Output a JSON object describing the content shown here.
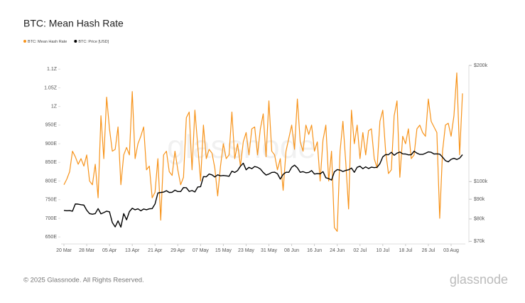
{
  "chart_data": {
    "type": "line",
    "title": "BTC: Mean Hash Rate",
    "watermark": "glassnode",
    "footer": "© 2025 Glassnode. All Rights Reserved.",
    "logo": "glassnode",
    "categories": [
      "20 Mar",
      null,
      null,
      null,
      null,
      null,
      null,
      null,
      "28 Mar",
      null,
      null,
      null,
      null,
      null,
      null,
      null,
      "05 Apr",
      null,
      null,
      null,
      null,
      null,
      null,
      null,
      "13 Apr",
      null,
      null,
      null,
      null,
      null,
      null,
      null,
      "21 Apr",
      null,
      null,
      null,
      null,
      null,
      null,
      null,
      "29 Apr",
      null,
      null,
      null,
      null,
      null,
      null,
      null,
      "07 May",
      null,
      null,
      null,
      null,
      null,
      null,
      null,
      "15 May",
      null,
      null,
      null,
      null,
      null,
      null,
      null,
      "23 May",
      null,
      null,
      null,
      null,
      null,
      null,
      null,
      "31 May",
      null,
      null,
      null,
      null,
      null,
      null,
      null,
      "08 Jun",
      null,
      null,
      null,
      null,
      null,
      null,
      null,
      "16 Jun",
      null,
      null,
      null,
      null,
      null,
      null,
      null,
      "24 Jun",
      null,
      null,
      null,
      null,
      null,
      null,
      null,
      "02 Jul",
      null,
      null,
      null,
      null,
      null,
      null,
      null,
      "10 Jul",
      null,
      null,
      null,
      null,
      null,
      null,
      null,
      "18 Jul",
      null,
      null,
      null,
      null,
      null,
      null,
      null,
      "26 Jul",
      null,
      null,
      null,
      null,
      null,
      null,
      null,
      "03 Aug",
      null,
      null,
      null,
      null
    ],
    "series": [
      {
        "name": "BTC: Mean Hash Rate",
        "color": "#f7931a",
        "axis": "y",
        "values": [
          790,
          805,
          825,
          880,
          865,
          845,
          860,
          840,
          870,
          800,
          790,
          845,
          755,
          975,
          860,
          1025,
          940,
          880,
          885,
          945,
          790,
          870,
          890,
          870,
          1040,
          860,
          900,
          920,
          945,
          830,
          840,
          755,
          770,
          860,
          695,
          870,
          880,
          825,
          815,
          880,
          830,
          790,
          810,
          970,
          985,
          830,
          990,
          895,
          800,
          950,
          860,
          885,
          875,
          835,
          760,
          840,
          900,
          860,
          870,
          985,
          860,
          900,
          840,
          905,
          930,
          870,
          940,
          945,
          870,
          940,
          980,
          865,
          1015,
          880,
          870,
          830,
          860,
          775,
          880,
          915,
          950,
          885,
          1020,
          905,
          880,
          950,
          925,
          950,
          880,
          905,
          800,
          910,
          950,
          800,
          880,
          675,
          665,
          880,
          960,
          850,
          725,
          990,
          900,
          950,
          860,
          930,
          870,
          935,
          940,
          860,
          835,
          960,
          990,
          880,
          820,
          830,
          975,
          1015,
          810,
          920,
          900,
          940,
          860,
          870,
          940,
          950,
          930,
          920,
          1020,
          960,
          945,
          930,
          700,
          880,
          950,
          955,
          920,
          975,
          1090,
          870,
          1035
        ]
      },
      {
        "name": "BTC: Price [USD]",
        "color": "#000000",
        "axis": "y2",
        "values": [
          84200,
          84000,
          84100,
          83800,
          87500,
          87400,
          87100,
          86900,
          84300,
          82600,
          82300,
          82600,
          85100,
          82500,
          83100,
          83800,
          83500,
          78300,
          76300,
          79100,
          76200,
          82600,
          79600,
          83600,
          85300,
          84500,
          85000,
          84000,
          84900,
          84500,
          85000,
          85100,
          87500,
          93400,
          93700,
          93900,
          94700,
          93700,
          93800,
          95000,
          94200,
          94200,
          96500,
          96400,
          94300,
          94800,
          94000,
          96800,
          97000,
          103000,
          102900,
          104600,
          104100,
          102800,
          104100,
          103500,
          103700,
          103500,
          103200,
          106400,
          105600,
          106800,
          109600,
          111600,
          107300,
          108900,
          108000,
          109400,
          108900,
          107800,
          105600,
          104000,
          104600,
          105600,
          105800,
          104800,
          101500,
          104400,
          105700,
          105700,
          108900,
          110300,
          108600,
          105700,
          106100,
          105400,
          105600,
          106800,
          104600,
          104900,
          104700,
          106100,
          102300,
          101800,
          100900,
          106000,
          107400,
          107100,
          106200,
          106900,
          107300,
          108400,
          105700,
          108900,
          109600,
          108000,
          109200,
          108100,
          109000,
          108700,
          108900,
          111300,
          115900,
          117500,
          117400,
          119100,
          117000,
          118500,
          119300,
          118000,
          117900,
          117300,
          117400,
          119900,
          118500,
          117600,
          117600,
          118400,
          119400,
          119100,
          117900,
          118000,
          117800,
          115700,
          113300,
          112500,
          114200,
          114900,
          114100,
          115000,
          117400
        ]
      }
    ],
    "ylim": [
      635,
      1110
    ],
    "yticks": [
      {
        "value": 650,
        "label": "650E"
      },
      {
        "value": 700,
        "label": "700E"
      },
      {
        "value": 750,
        "label": "750E"
      },
      {
        "value": 800,
        "label": "800E"
      },
      {
        "value": 850,
        "label": "850E"
      },
      {
        "value": 900,
        "label": "900E"
      },
      {
        "value": 950,
        "label": "950E"
      },
      {
        "value": 1000,
        "label": "1Z"
      },
      {
        "value": 1050,
        "label": "1.05Z"
      },
      {
        "value": 1100,
        "label": "1.1Z"
      }
    ],
    "y2lim": [
      69500,
      200000
    ],
    "y2log": true,
    "y2ticks": [
      {
        "value": 70000,
        "label": "$70k"
      },
      {
        "value": 80000,
        "label": "$80k"
      },
      {
        "value": 90000,
        "label": "$90k"
      },
      {
        "value": 100000,
        "label": "$100k"
      },
      {
        "value": 200000,
        "label": "$200k"
      }
    ],
    "legend": "top-left",
    "grid": false
  }
}
